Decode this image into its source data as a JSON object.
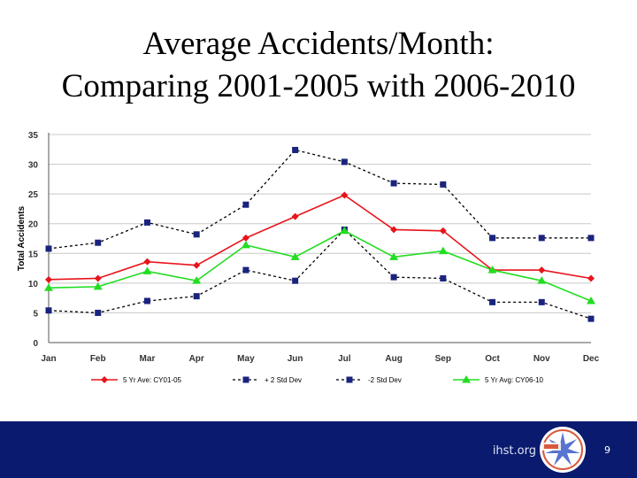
{
  "slide": {
    "title_line1": "Average Accidents/Month:",
    "title_line2": "Comparing 2001-2005 with 2006-2010",
    "footer_site": "ihst.org",
    "page_number": "9",
    "footer_color": "#0a1a6e"
  },
  "chart_data": {
    "type": "line",
    "title": "",
    "xlabel": "",
    "ylabel": "Total Accidents",
    "ylim": [
      0,
      35
    ],
    "yticks": [
      0,
      5,
      10,
      15,
      20,
      25,
      30,
      35
    ],
    "grid": true,
    "legend_position": "bottom",
    "categories": [
      "Jan",
      "Feb",
      "Mar",
      "Apr",
      "May",
      "Jun",
      "Jul",
      "Aug",
      "Sep",
      "Oct",
      "Nov",
      "Dec"
    ],
    "series": [
      {
        "name": "5 Yr Ave: CY01-05",
        "color": "#e8141b",
        "line_style": "solid",
        "marker": "diamond",
        "values": [
          10.6,
          10.8,
          13.6,
          13.0,
          17.6,
          21.2,
          24.8,
          19.0,
          18.8,
          12.2,
          12.2,
          10.8
        ]
      },
      {
        "name": "+ 2 Std Dev",
        "color": "#000000",
        "marker_color": "#1a237e",
        "line_style": "dashed",
        "marker": "square",
        "values": [
          15.8,
          16.8,
          20.2,
          18.2,
          23.2,
          32.4,
          30.4,
          26.8,
          26.6,
          17.6,
          17.6,
          17.6
        ]
      },
      {
        "name": "-2 Std Dev",
        "color": "#000000",
        "marker_color": "#1a237e",
        "line_style": "dashed",
        "marker": "square",
        "values": [
          5.4,
          5.0,
          7.0,
          7.8,
          12.2,
          10.4,
          19.0,
          11.0,
          10.8,
          6.8,
          6.8,
          4.0
        ]
      },
      {
        "name": "5 Yr Avg: CY06-10",
        "color": "#22dd22",
        "line_style": "solid",
        "marker": "triangle",
        "values": [
          9.2,
          9.4,
          12.0,
          10.4,
          16.4,
          14.4,
          18.8,
          14.4,
          15.4,
          12.2,
          10.4,
          7.0
        ]
      }
    ]
  }
}
